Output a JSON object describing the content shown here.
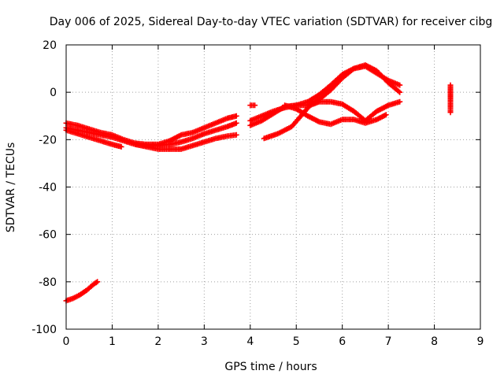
{
  "chart_data": {
    "type": "scatter",
    "title": "Day 006 of 2025, Sidereal Day-to-day VTEC variation (SDTVAR) for receiver cibg",
    "xlabel": "GPS time / hours",
    "ylabel": "SDTVAR / TECUs",
    "xlim": [
      0,
      9
    ],
    "ylim": [
      -100,
      20
    ],
    "xticks": [
      "0",
      "1",
      "2",
      "3",
      "4",
      "5",
      "6",
      "7",
      "8",
      "9"
    ],
    "yticks": [
      "20",
      "0",
      "-20",
      "-40",
      "-60",
      "-80",
      "-100"
    ],
    "grid": true,
    "marker": "plus",
    "color": "#ff0000",
    "series": [
      {
        "x": [
          0.0,
          0.25,
          0.5,
          0.75,
          1.0,
          1.25,
          1.5,
          1.75,
          2.0,
          2.25,
          2.5,
          2.75,
          3.0,
          3.25,
          3.5,
          3.7
        ],
        "y": [
          -13,
          -14,
          -15.5,
          -17,
          -18,
          -20,
          -21.5,
          -22,
          -22,
          -20.5,
          -18,
          -17,
          -15,
          -13,
          -11,
          -10
        ]
      },
      {
        "x": [
          0.0,
          0.25,
          0.5,
          0.75,
          1.0,
          1.25,
          1.5,
          1.75,
          2.0,
          2.25,
          2.5,
          2.75,
          3.0,
          3.25,
          3.5,
          3.7
        ],
        "y": [
          -15,
          -16,
          -17,
          -18,
          -19,
          -20.5,
          -22,
          -22.5,
          -22.5,
          -22,
          -21,
          -19.5,
          -17.5,
          -16,
          -14.5,
          -13
        ]
      },
      {
        "x": [
          0.0,
          0.25,
          0.5,
          0.75,
          1.0,
          1.2
        ],
        "y": [
          -16,
          -17.5,
          -19,
          -20.5,
          -22,
          -23
        ]
      },
      {
        "x": [
          1.5,
          1.75,
          2.0,
          2.25,
          2.5,
          2.75,
          3.0,
          3.25,
          3.5,
          3.7
        ],
        "y": [
          -22,
          -23,
          -24,
          -24,
          -24,
          -22.5,
          -21,
          -19.5,
          -18.5,
          -18
        ]
      },
      {
        "x": [
          0.0,
          0.15,
          0.3,
          0.45,
          0.6,
          0.68
        ],
        "y": [
          -88,
          -87,
          -85.5,
          -83.5,
          -81,
          -80
        ]
      },
      {
        "x": [
          4.0,
          4.1
        ],
        "y": [
          -5.5,
          -5.5
        ]
      },
      {
        "x": [
          4.0,
          4.25,
          4.5,
          4.75,
          5.0,
          5.25,
          5.5,
          5.75,
          6.0,
          6.25,
          6.5,
          6.75,
          7.0,
          7.25
        ],
        "y": [
          -12,
          -10,
          -8,
          -6.5,
          -5.5,
          -4,
          -1,
          3,
          7.5,
          10,
          11,
          8,
          5,
          3
        ]
      },
      {
        "x": [
          4.0,
          4.25,
          4.5,
          4.75,
          5.0,
          5.25,
          5.5,
          5.75,
          6.0,
          6.25,
          6.5,
          6.75,
          7.0,
          7.25
        ],
        "y": [
          -14,
          -12,
          -9,
          -6,
          -5.5,
          -5.5,
          -3,
          1,
          6,
          10,
          11.5,
          9,
          4,
          0
        ]
      },
      {
        "x": [
          4.3,
          4.6,
          4.9,
          5.1,
          5.3,
          5.5,
          5.75,
          6.0,
          6.25,
          6.5,
          6.75,
          7.0,
          7.25
        ],
        "y": [
          -19.5,
          -17.5,
          -14.5,
          -10,
          -5.5,
          -4,
          -4,
          -5,
          -8,
          -12,
          -8,
          -5.5,
          -4
        ]
      },
      {
        "x": [
          4.75,
          5.0,
          5.25,
          5.5,
          5.75,
          6.0,
          6.25,
          6.5,
          6.75,
          6.95
        ],
        "y": [
          -5.5,
          -7,
          -10,
          -12.5,
          -13.5,
          -11.5,
          -11.5,
          -13,
          -11.5,
          -9.5
        ]
      },
      {
        "x": [
          8.35,
          8.35,
          8.35,
          8.35
        ],
        "y": [
          3,
          0,
          -3.5,
          -8.5
        ]
      }
    ]
  }
}
